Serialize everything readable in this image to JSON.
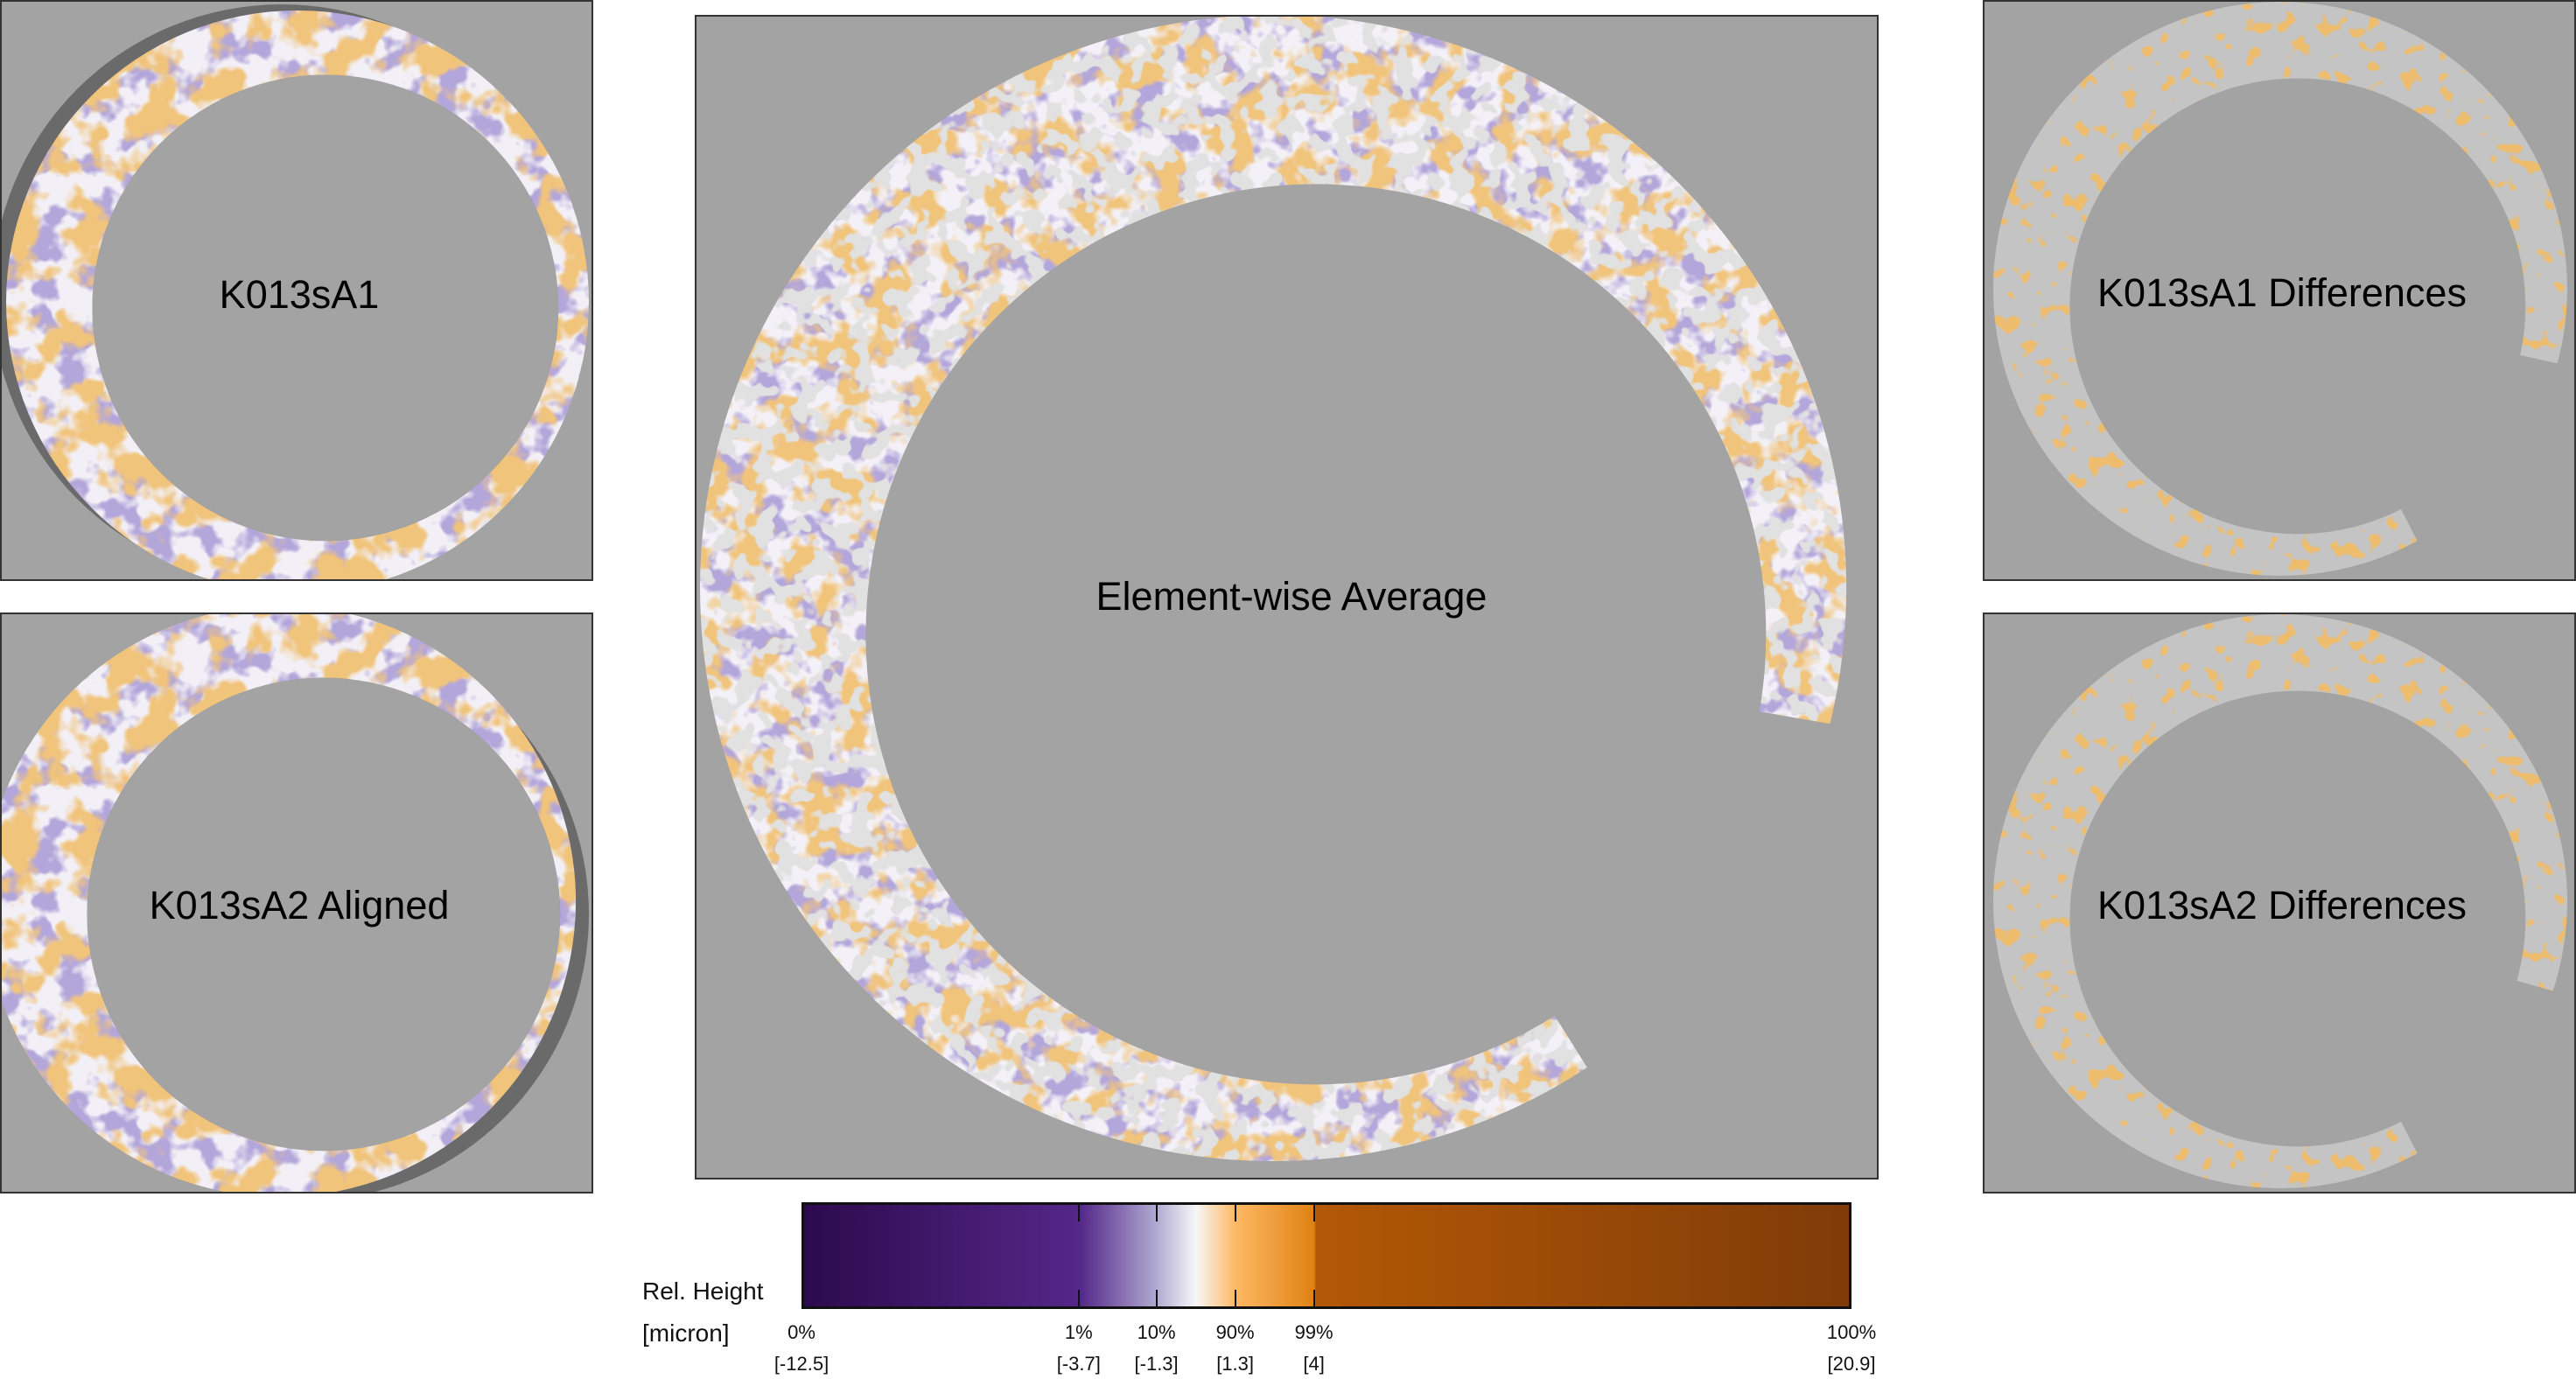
{
  "panels": {
    "sA1": {
      "title": "K013sA1"
    },
    "sA2": {
      "title": "K013sA2 Aligned"
    },
    "average": {
      "title": "Element-wise Average"
    },
    "sA1_diff": {
      "title": "K013sA1 Differences"
    },
    "sA2_diff": {
      "title": "K013sA2 Differences"
    }
  },
  "colorbar": {
    "label": "Rel. Height",
    "unit": "[micron]",
    "colors": {
      "min": "#2d0a4e",
      "low": "#542788",
      "mid": "#f7f7f7",
      "high": "#e08214",
      "max": "#7f3b08"
    },
    "ticks": [
      {
        "pct": "0%",
        "value": "[-12.5]",
        "pos": 0
      },
      {
        "pct": "1%",
        "value": "[-3.7]",
        "pos": 0.264
      },
      {
        "pct": "10%",
        "value": "[-1.3]",
        "pos": 0.338
      },
      {
        "pct": "90%",
        "value": "[1.3]",
        "pos": 0.413
      },
      {
        "pct": "99%",
        "value": "[4]",
        "pos": 0.488
      },
      {
        "pct": "100%",
        "value": "[20.9]",
        "pos": 1
      }
    ]
  }
}
